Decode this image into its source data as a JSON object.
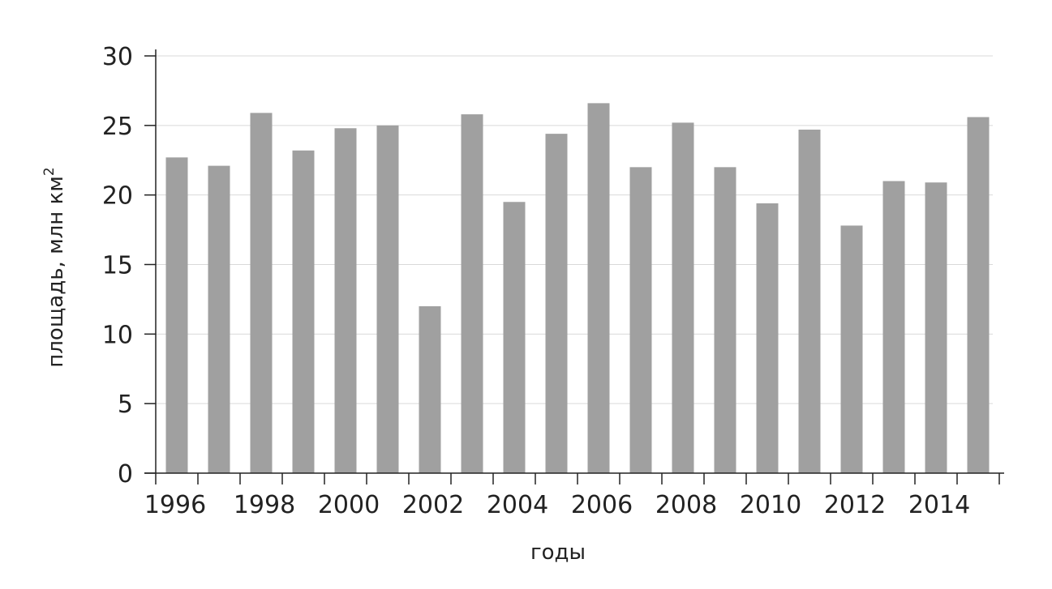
{
  "chart_data": {
    "type": "bar",
    "title": "",
    "xlabel": "годы",
    "ylabel": "площадь, млн км",
    "ylabel_sup": "2",
    "categories": [
      "1996",
      "1997",
      "1998",
      "1999",
      "2000",
      "2001",
      "2002",
      "2003",
      "2004",
      "2005",
      "2006",
      "2007",
      "2008",
      "2009",
      "2010",
      "2011",
      "2012",
      "2013",
      "2014",
      "2015"
    ],
    "x_tick_labels": [
      "1996",
      "1998",
      "2000",
      "2002",
      "2004",
      "2006",
      "2008",
      "2010",
      "2012",
      "2014"
    ],
    "values": [
      22.7,
      22.1,
      25.9,
      23.2,
      24.8,
      25.0,
      12.0,
      25.8,
      19.5,
      24.4,
      26.6,
      22.0,
      25.2,
      22.0,
      19.4,
      24.7,
      17.8,
      21.0,
      20.9,
      25.6
    ],
    "ylim": [
      0,
      30
    ],
    "yticks": [
      0,
      5,
      10,
      15,
      20,
      25,
      30
    ],
    "grid": true,
    "bar_color": "#a0a0a0",
    "legend": false
  }
}
